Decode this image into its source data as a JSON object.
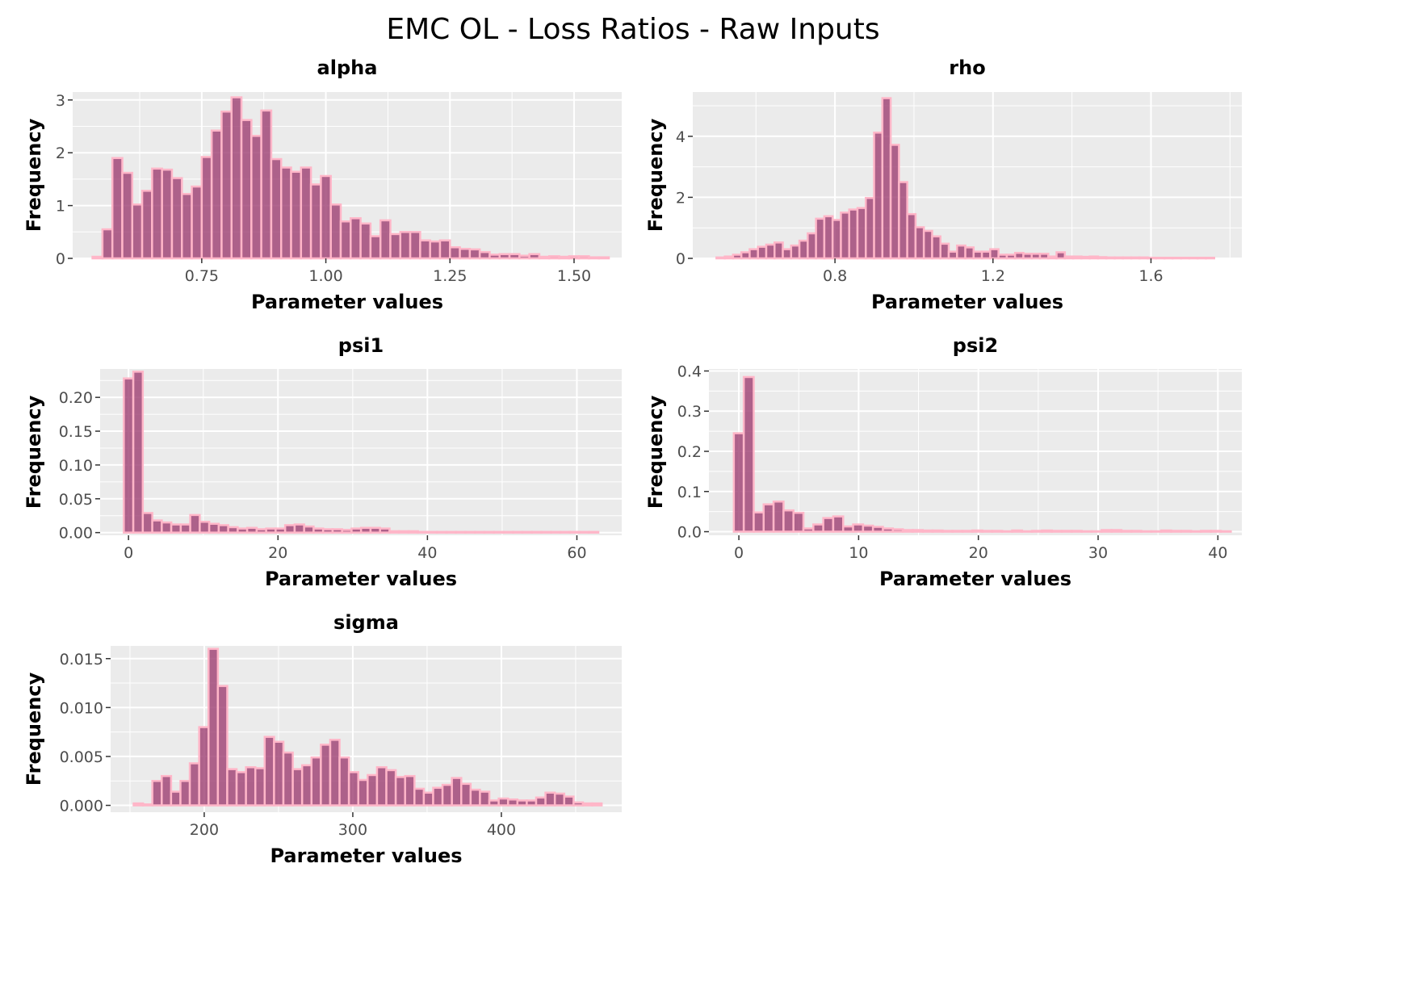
{
  "title": "EMC OL - Loss Ratios - Raw Inputs",
  "colors": {
    "bar_fill": "#9e3f72",
    "bar_outline": "#ffb6c8",
    "panel_background": "#ebebeb",
    "grid": "#ffffff"
  },
  "chart_data": [
    {
      "type": "bar",
      "title": "alpha",
      "xlabel": "Parameter values",
      "ylabel": "Frequency",
      "xlim": [
        0.49,
        1.596
      ],
      "ylim": [
        0,
        3.15
      ],
      "xticks": [
        0.75,
        1.0,
        1.25,
        1.5
      ],
      "xtick_labels": [
        "0.75",
        "1.00",
        "1.25",
        "1.50"
      ],
      "yticks": [
        0,
        1,
        2,
        3
      ],
      "ytick_labels": [
        "0",
        "1",
        "2",
        "3"
      ],
      "grid": true,
      "bin_start": 0.53,
      "bin_width": 0.02,
      "values": [
        0.03,
        0.55,
        1.9,
        1.62,
        1.02,
        1.28,
        1.7,
        1.68,
        1.52,
        1.22,
        1.36,
        1.92,
        2.42,
        2.78,
        3.05,
        2.62,
        2.32,
        2.8,
        1.88,
        1.72,
        1.64,
        1.72,
        1.4,
        1.56,
        1.02,
        0.7,
        0.76,
        0.66,
        0.42,
        0.72,
        0.46,
        0.5,
        0.5,
        0.34,
        0.32,
        0.34,
        0.21,
        0.18,
        0.17,
        0.12,
        0.07,
        0.08,
        0.08,
        0.05,
        0.08,
        0.03,
        0.04,
        0.03,
        0.04,
        0.04,
        0.02,
        0.02
      ]
    },
    {
      "type": "bar",
      "title": "rho",
      "xlabel": "Parameter values",
      "ylabel": "Frequency",
      "xlim": [
        0.44,
        1.83
      ],
      "ylim": [
        0,
        5.45
      ],
      "xticks": [
        0.8,
        1.2,
        1.6
      ],
      "xtick_labels": [
        "0.8",
        "1.2",
        "1.6"
      ],
      "yticks": [
        0,
        2,
        4
      ],
      "ytick_labels": [
        "0",
        "2",
        "4"
      ],
      "grid": true,
      "bin_start": 0.5,
      "bin_width": 0.021,
      "values": [
        0.03,
        0.06,
        0.12,
        0.2,
        0.3,
        0.38,
        0.45,
        0.52,
        0.3,
        0.42,
        0.58,
        0.82,
        1.3,
        1.38,
        1.26,
        1.5,
        1.6,
        1.65,
        1.98,
        4.12,
        5.25,
        3.72,
        2.5,
        1.45,
        1.02,
        0.9,
        0.72,
        0.48,
        0.22,
        0.42,
        0.36,
        0.22,
        0.22,
        0.3,
        0.12,
        0.12,
        0.18,
        0.15,
        0.15,
        0.15,
        0.06,
        0.2,
        0.06,
        0.06,
        0.05,
        0.06,
        0.04,
        0.03,
        0.03,
        0.03,
        0.03,
        0.03,
        0.02,
        0.02,
        0.02,
        0.02,
        0.02,
        0.02,
        0.02,
        0.02
      ]
    },
    {
      "type": "bar",
      "title": "psi1",
      "xlabel": "Parameter values",
      "ylabel": "Frequency",
      "xlim": [
        -3.8,
        66
      ],
      "ylim": [
        -0.004,
        0.242
      ],
      "xticks": [
        0,
        20,
        40,
        60
      ],
      "xtick_labels": [
        "0",
        "20",
        "40",
        "60"
      ],
      "yticks": [
        0.0,
        0.05,
        0.1,
        0.15,
        0.2
      ],
      "ytick_labels": [
        "0.00",
        "0.05",
        "0.10",
        "0.15",
        "0.20"
      ],
      "grid": true,
      "bin_start": -0.63,
      "bin_width": 1.27,
      "values": [
        0.228,
        0.238,
        0.029,
        0.018,
        0.015,
        0.012,
        0.012,
        0.026,
        0.016,
        0.013,
        0.011,
        0.008,
        0.006,
        0.007,
        0.005,
        0.006,
        0.006,
        0.011,
        0.012,
        0.009,
        0.006,
        0.005,
        0.005,
        0.004,
        0.006,
        0.007,
        0.007,
        0.006,
        0.002,
        0.002,
        0.002,
        0.001,
        0.001,
        0.001,
        0.001,
        0.001,
        0.001,
        0.001,
        0.001,
        0.001,
        0.001,
        0.001,
        0.001,
        0.001,
        0.001,
        0.001,
        0.001,
        0.001,
        0.001,
        0.001
      ]
    },
    {
      "type": "bar",
      "title": "psi2",
      "xlabel": "Parameter values",
      "ylabel": "Frequency",
      "xlim": [
        -2.5,
        42
      ],
      "ylim": [
        -0.009,
        0.405
      ],
      "xticks": [
        0,
        10,
        20,
        30,
        40
      ],
      "xtick_labels": [
        "0",
        "10",
        "20",
        "30",
        "40"
      ],
      "yticks": [
        0.0,
        0.1,
        0.2,
        0.3,
        0.4
      ],
      "ytick_labels": [
        "0.0",
        "0.1",
        "0.2",
        "0.3",
        "0.4"
      ],
      "grid": true,
      "bin_start": -0.42,
      "bin_width": 0.83,
      "values": [
        0.245,
        0.385,
        0.048,
        0.068,
        0.075,
        0.053,
        0.047,
        0.008,
        0.018,
        0.034,
        0.038,
        0.013,
        0.018,
        0.015,
        0.012,
        0.008,
        0.006,
        0.004,
        0.004,
        0.003,
        0.003,
        0.002,
        0.002,
        0.002,
        0.003,
        0.002,
        0.002,
        0.001,
        0.003,
        0.001,
        0.002,
        0.003,
        0.002,
        0.002,
        0.002,
        0.001,
        0.001,
        0.004,
        0.004,
        0.002,
        0.002,
        0.001,
        0.001,
        0.003,
        0.002,
        0.002,
        0.001,
        0.002,
        0.002,
        0.001
      ]
    },
    {
      "type": "bar",
      "title": "sigma",
      "xlabel": "Parameter values",
      "ylabel": "Frequency",
      "xlim": [
        137,
        481
      ],
      "ylim": [
        -0.0007,
        0.0163
      ],
      "xticks": [
        200,
        300,
        400
      ],
      "xtick_labels": [
        "200",
        "300",
        "400"
      ],
      "yticks": [
        0.0,
        0.005,
        0.01,
        0.015
      ],
      "ytick_labels": [
        "0.000",
        "0.005",
        "0.010",
        "0.015"
      ],
      "grid": true,
      "bin_start": 152.5,
      "bin_width": 6.3,
      "values": [
        0.0002,
        0.0001,
        0.0025,
        0.003,
        0.0014,
        0.0025,
        0.0043,
        0.008,
        0.016,
        0.0122,
        0.0037,
        0.0034,
        0.0039,
        0.0038,
        0.007,
        0.0065,
        0.0054,
        0.0037,
        0.0041,
        0.0049,
        0.0062,
        0.0067,
        0.0049,
        0.0034,
        0.0026,
        0.0031,
        0.0039,
        0.0036,
        0.0029,
        0.003,
        0.0017,
        0.0013,
        0.0018,
        0.0021,
        0.0028,
        0.0022,
        0.0016,
        0.0014,
        0.0005,
        0.0007,
        0.0006,
        0.0005,
        0.0005,
        0.0008,
        0.0013,
        0.0012,
        0.0009,
        0.0003,
        0.0002,
        0.0002
      ]
    }
  ]
}
